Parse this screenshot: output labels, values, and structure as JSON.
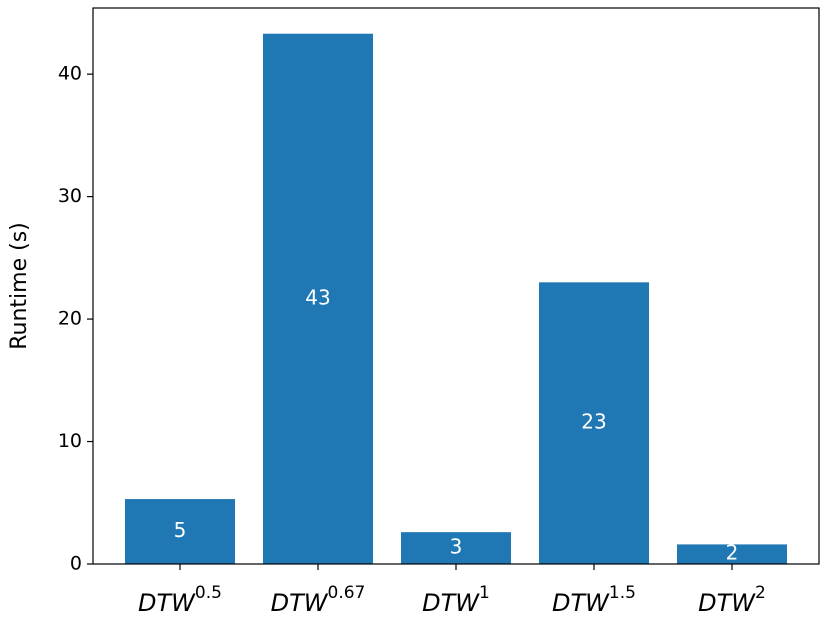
{
  "chart_data": {
    "type": "bar",
    "y_label": "Runtime (s)",
    "categories": [
      {
        "label": "DTW",
        "superscript": "0.5"
      },
      {
        "label": "DTW",
        "superscript": "0.67"
      },
      {
        "label": "DTW",
        "superscript": "1"
      },
      {
        "label": "DTW",
        "superscript": "1.5"
      },
      {
        "label": "DTW",
        "superscript": "2"
      }
    ],
    "values": [
      5.3,
      43.3,
      2.6,
      23.0,
      1.6
    ],
    "value_labels": [
      "5",
      "43",
      "3",
      "23",
      "2"
    ],
    "color": "#1f77b4",
    "ylim": [
      0,
      45.4
    ],
    "yticks": [
      0,
      10,
      20,
      30,
      40
    ],
    "grid": false
  }
}
